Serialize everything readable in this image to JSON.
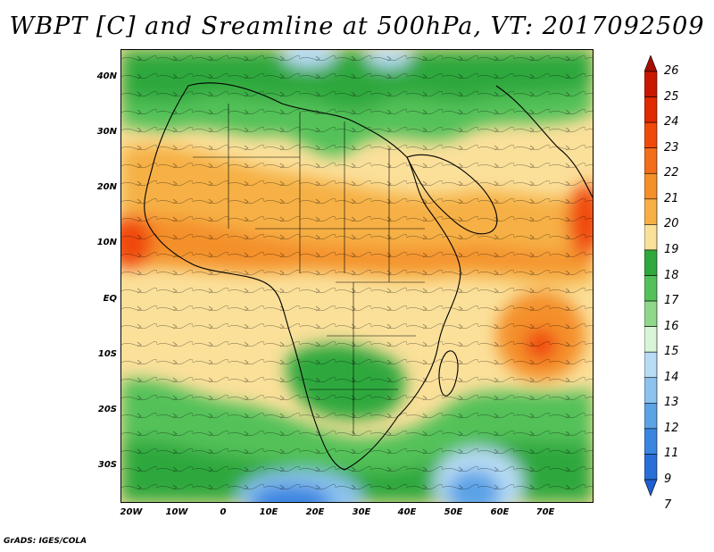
{
  "title": "WBPT [C] and Sreamline at 500hPa, VT: 2017092509",
  "credit": "GrADS: IGES/COLA",
  "lat_axis": [
    "40N",
    "30N",
    "20N",
    "10N",
    "EQ",
    "10S",
    "20S",
    "30S"
  ],
  "lon_axis": [
    "20W",
    "10W",
    "0",
    "10E",
    "20E",
    "30E",
    "40E",
    "50E",
    "60E",
    "70E"
  ],
  "colorbar": {
    "labels": [
      "26",
      "25",
      "24",
      "23",
      "22",
      "21",
      "20",
      "19",
      "18",
      "17",
      "16",
      "15",
      "14",
      "13",
      "12",
      "11",
      "9",
      "7"
    ],
    "colors": [
      "#a50f00",
      "#c81800",
      "#e02a00",
      "#f04a0a",
      "#f36e1a",
      "#f4902a",
      "#f6b045",
      "#fbe09a",
      "#2fa83c",
      "#53c158",
      "#8fd88b",
      "#d8f5d8",
      "#b8dcf5",
      "#8cc2ee",
      "#5ca3e6",
      "#3a85e0",
      "#2a6fd8",
      "#1f5fcf"
    ]
  }
}
